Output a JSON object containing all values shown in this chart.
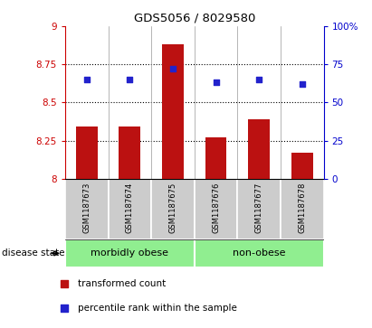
{
  "title": "GDS5056 / 8029580",
  "categories": [
    "GSM1187673",
    "GSM1187674",
    "GSM1187675",
    "GSM1187676",
    "GSM1187677",
    "GSM1187678"
  ],
  "bar_values": [
    8.34,
    8.34,
    8.88,
    8.27,
    8.39,
    8.17
  ],
  "bar_bottom": 8.0,
  "percentile_values": [
    65,
    65,
    72,
    63,
    65,
    62
  ],
  "ylim_left": [
    8.0,
    9.0
  ],
  "ylim_right": [
    0,
    100
  ],
  "yticks_left": [
    8.0,
    8.25,
    8.5,
    8.75,
    9.0
  ],
  "ytick_labels_left": [
    "8",
    "8.25",
    "8.5",
    "8.75",
    "9"
  ],
  "yticks_right": [
    0,
    25,
    50,
    75,
    100
  ],
  "grid_dotted_at": [
    8.25,
    8.5,
    8.75
  ],
  "bar_color": "#bb1111",
  "dot_color": "#2222cc",
  "groups": [
    {
      "label": "morbidly obese",
      "start": 0,
      "end": 3,
      "color": "#90ee90"
    },
    {
      "label": "non-obese",
      "start": 3,
      "end": 6,
      "color": "#90ee90"
    }
  ],
  "disease_state_label": "disease state",
  "legend_bar_label": "transformed count",
  "legend_dot_label": "percentile rank within the sample",
  "tick_bg_color": "#cccccc",
  "left_axis_color": "#cc0000",
  "right_axis_color": "#0000cc",
  "bar_width": 0.5
}
